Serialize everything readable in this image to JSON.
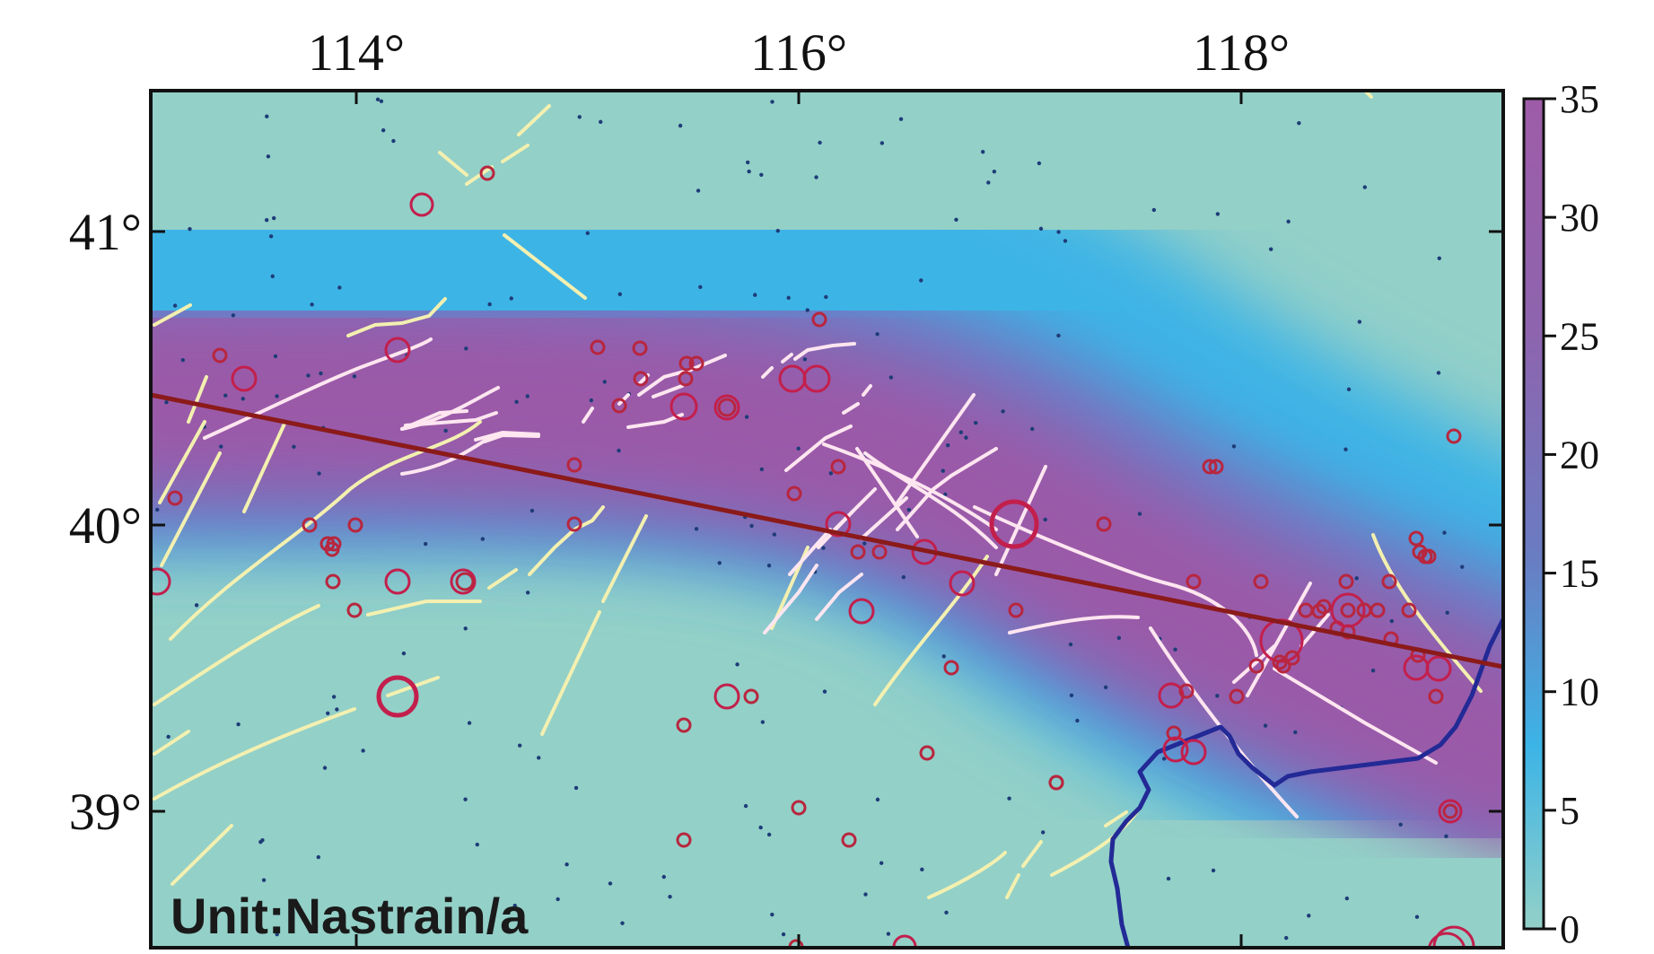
{
  "map": {
    "unit_label": "Unit:Nastrain/a",
    "colors": {
      "background": "#93d0c8",
      "band_blue": "#3cb4e6",
      "band_purple": "#9658a8",
      "profile_line": "#8b1a1a",
      "fault_lines": "#f3f0b0",
      "fault_lines_in_band": "#ffe6f0",
      "earthquake_circles": "#d6224e",
      "boundary_line": "#232a96",
      "stations": "#1e3c78"
    },
    "lon_ticks": [
      {
        "label": "114°",
        "lon": 114
      },
      {
        "label": "116°",
        "lon": 116
      },
      {
        "label": "118°",
        "lon": 118
      }
    ],
    "lat_ticks": [
      {
        "label": "41°",
        "lat": 41
      },
      {
        "label": "40°",
        "lat": 40
      },
      {
        "label": "39°",
        "lat": 39
      }
    ],
    "colorbar": {
      "min": 0,
      "max": 35,
      "ticks": [
        "0",
        "5",
        "10",
        "15",
        "20",
        "25",
        "30",
        "35"
      ],
      "stops": [
        "#93d0c8",
        "#3cb4e6",
        "#6a7cc2",
        "#8e64ae",
        "#9e5ca8"
      ]
    }
  }
}
